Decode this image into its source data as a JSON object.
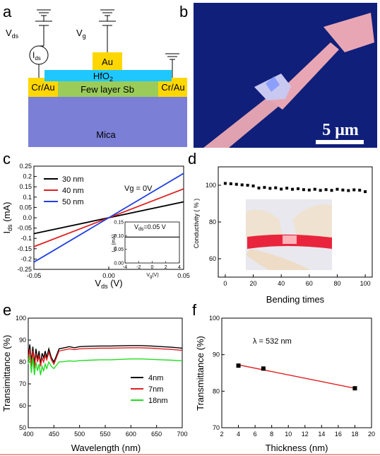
{
  "panel_labels": [
    "a",
    "b",
    "c",
    "d",
    "e",
    "f"
  ],
  "panel_a": {
    "labels": {
      "vds": "V",
      "vds_sub": "ds",
      "vg": "V",
      "vg_sub": "g",
      "ids": "I",
      "ids_sub": "ds",
      "gate": "Au",
      "dielectric": "HfO",
      "dielectric_sub": "2",
      "channel": "Few layer Sb",
      "contact_left": "Cr/Au",
      "contact_right": "Cr/Au",
      "substrate": "Mica"
    },
    "colors": {
      "contact": "#ffd700",
      "dielectric": "#1ec8ff",
      "channel": "#9bcc5a",
      "substrate": "#7b7fd6"
    }
  },
  "panel_b": {
    "scale_bar": "5 μm",
    "colors": {
      "background": "#0c1a6e",
      "flake": "#e8a6b4",
      "sb": "#c9c8f0"
    }
  },
  "chart_data": [
    {
      "panel": "c",
      "type": "line",
      "xlabel": "V",
      "xlabel_sub": "ds",
      "xlabel_unit": " (V)",
      "ylabel": "I",
      "ylabel_sub": "ds",
      "ylabel_unit": " (mA)",
      "xlim": [
        -0.05,
        0.05
      ],
      "ylim": [
        -0.25,
        0.25
      ],
      "xticks": [
        "-0.05",
        "0.00",
        "0.05"
      ],
      "yticks": [
        "-0.25",
        "-0.2",
        "-0.15",
        "-0.1",
        "-0.05",
        "0.0",
        "0.05",
        "0.1",
        "0.15",
        "0.2",
        "0.25"
      ],
      "annotation": "Vg = 0V",
      "series": [
        {
          "name": "30 nm",
          "color": "#000000",
          "x": [
            -0.05,
            0.05
          ],
          "y": [
            -0.077,
            0.077
          ]
        },
        {
          "name": "40 nm",
          "color": "#e02020",
          "x": [
            -0.05,
            0.05
          ],
          "y": [
            -0.14,
            0.14
          ]
        },
        {
          "name": "50 nm",
          "color": "#2040e0",
          "x": [
            -0.05,
            0.05
          ],
          "y": [
            -0.215,
            0.215
          ]
        }
      ],
      "inset": {
        "type": "line",
        "xlabel": "V",
        "xlabel_sub": "g",
        "xlabel_unit": "(V)",
        "ylabel": "I",
        "ylabel_sub": "ds",
        "ylabel_unit": " (mA)",
        "xlim": [
          -4,
          4
        ],
        "ylim": [
          0.0,
          0.15
        ],
        "xticks": [
          "-4",
          "-2",
          "0",
          "2",
          "4"
        ],
        "yticks": [
          "0.00",
          "0.05",
          "0.10",
          "0.15"
        ],
        "annotation": "V",
        "annotation_sub": "ds",
        "annotation_rest": "=0.05 V",
        "series": [
          {
            "color": "#000000",
            "x": [
              -4,
              4
            ],
            "y": [
              0.095,
              0.095
            ]
          }
        ]
      }
    },
    {
      "panel": "d",
      "type": "scatter",
      "xlabel": "Bending times",
      "ylabel": "Conductivity ( % )",
      "xlim": [
        -5,
        105
      ],
      "ylim": [
        50,
        110
      ],
      "xticks": [
        "0",
        "20",
        "40",
        "60",
        "80",
        "100"
      ],
      "yticks": [
        "60",
        "80",
        "100"
      ],
      "series": [
        {
          "color": "#000000",
          "x": [
            0,
            4,
            8,
            12,
            16,
            20,
            24,
            28,
            32,
            36,
            40,
            44,
            48,
            52,
            56,
            60,
            64,
            68,
            72,
            76,
            80,
            84,
            88,
            92,
            96,
            100
          ],
          "y": [
            101,
            100.8,
            100.5,
            100.2,
            100,
            99.6,
            98.5,
            98.8,
            98.3,
            98.6,
            97.9,
            98.4,
            97.8,
            98.1,
            97.6,
            97.4,
            97.8,
            97.2,
            97.6,
            97.2,
            97.8,
            97.4,
            97.1,
            97.5,
            97.3,
            96.5
          ]
        }
      ]
    },
    {
      "panel": "e",
      "type": "line",
      "xlabel": "Wavelength (nm)",
      "ylabel": "Transimittance (%)",
      "xlim": [
        400,
        700
      ],
      "ylim": [
        50,
        100
      ],
      "xticks": [
        "400",
        "450",
        "500",
        "550",
        "600",
        "650",
        "700"
      ],
      "yticks": [
        "50",
        "60",
        "70",
        "80",
        "90",
        "100"
      ],
      "series": [
        {
          "name": "4nm",
          "color": "#000000",
          "x": [
            400,
            403,
            406,
            409,
            412,
            415,
            418,
            421,
            424,
            427,
            430,
            433,
            436,
            440,
            445,
            450,
            455,
            460,
            470,
            480,
            490,
            500,
            520,
            540,
            560,
            580,
            600,
            620,
            640,
            660,
            680,
            700
          ],
          "y": [
            82,
            88,
            80,
            87,
            79,
            86,
            81,
            85,
            79,
            84,
            82,
            85,
            82,
            86,
            82,
            80,
            83,
            86,
            86.5,
            87,
            86.5,
            87,
            87.2,
            87.3,
            87.3,
            87.4,
            87.5,
            87.5,
            87.3,
            87.0,
            86.7,
            86.3
          ]
        },
        {
          "name": "7nm",
          "color": "#e02020",
          "x": [
            400,
            403,
            406,
            409,
            412,
            415,
            418,
            421,
            424,
            427,
            430,
            433,
            436,
            440,
            445,
            450,
            455,
            460,
            470,
            480,
            490,
            500,
            520,
            540,
            560,
            580,
            600,
            620,
            640,
            660,
            680,
            700
          ],
          "y": [
            81,
            86,
            78,
            85,
            77,
            84,
            80,
            83,
            78,
            82,
            80,
            83,
            81,
            84.5,
            81,
            79,
            82,
            85,
            85.5,
            86,
            85.6,
            86,
            86.2,
            86.3,
            86.3,
            86.4,
            86.5,
            86.5,
            86.3,
            86.0,
            85.7,
            85.3
          ]
        },
        {
          "name": "18nm",
          "color": "#22dd22",
          "x": [
            400,
            403,
            406,
            409,
            412,
            415,
            418,
            421,
            424,
            427,
            430,
            433,
            436,
            440,
            445,
            450,
            455,
            460,
            470,
            480,
            490,
            500,
            520,
            540,
            560,
            580,
            600,
            620,
            640,
            660,
            680,
            700
          ],
          "y": [
            79,
            83,
            75,
            82,
            74,
            80,
            76,
            79,
            74,
            78,
            76,
            79,
            77,
            80,
            78,
            77,
            78.5,
            80,
            80.2,
            80.5,
            80.3,
            80.6,
            80.8,
            81.0,
            81.0,
            81.2,
            81.4,
            81.4,
            81.2,
            81.0,
            80.8,
            80.5
          ]
        }
      ]
    },
    {
      "panel": "f",
      "type": "scatter",
      "xlabel": "Thickness (nm)",
      "ylabel": "Transmittance (%)",
      "xlim": [
        2,
        20
      ],
      "ylim": [
        70,
        100
      ],
      "xticks": [
        "2",
        "4",
        "6",
        "8",
        "10",
        "12",
        "14",
        "16",
        "18",
        "20"
      ],
      "yticks": [
        "70",
        "80",
        "90",
        "100"
      ],
      "annotation": "λ = 532 nm",
      "series": [
        {
          "color": "#000000",
          "x": [
            4,
            7,
            18
          ],
          "y": [
            87.0,
            86.2,
            80.8
          ]
        }
      ],
      "fit": {
        "color": "#e02020",
        "x": [
          4,
          18
        ],
        "y": [
          87.2,
          80.8
        ]
      }
    }
  ],
  "bottom_rule_color": "#e03030"
}
